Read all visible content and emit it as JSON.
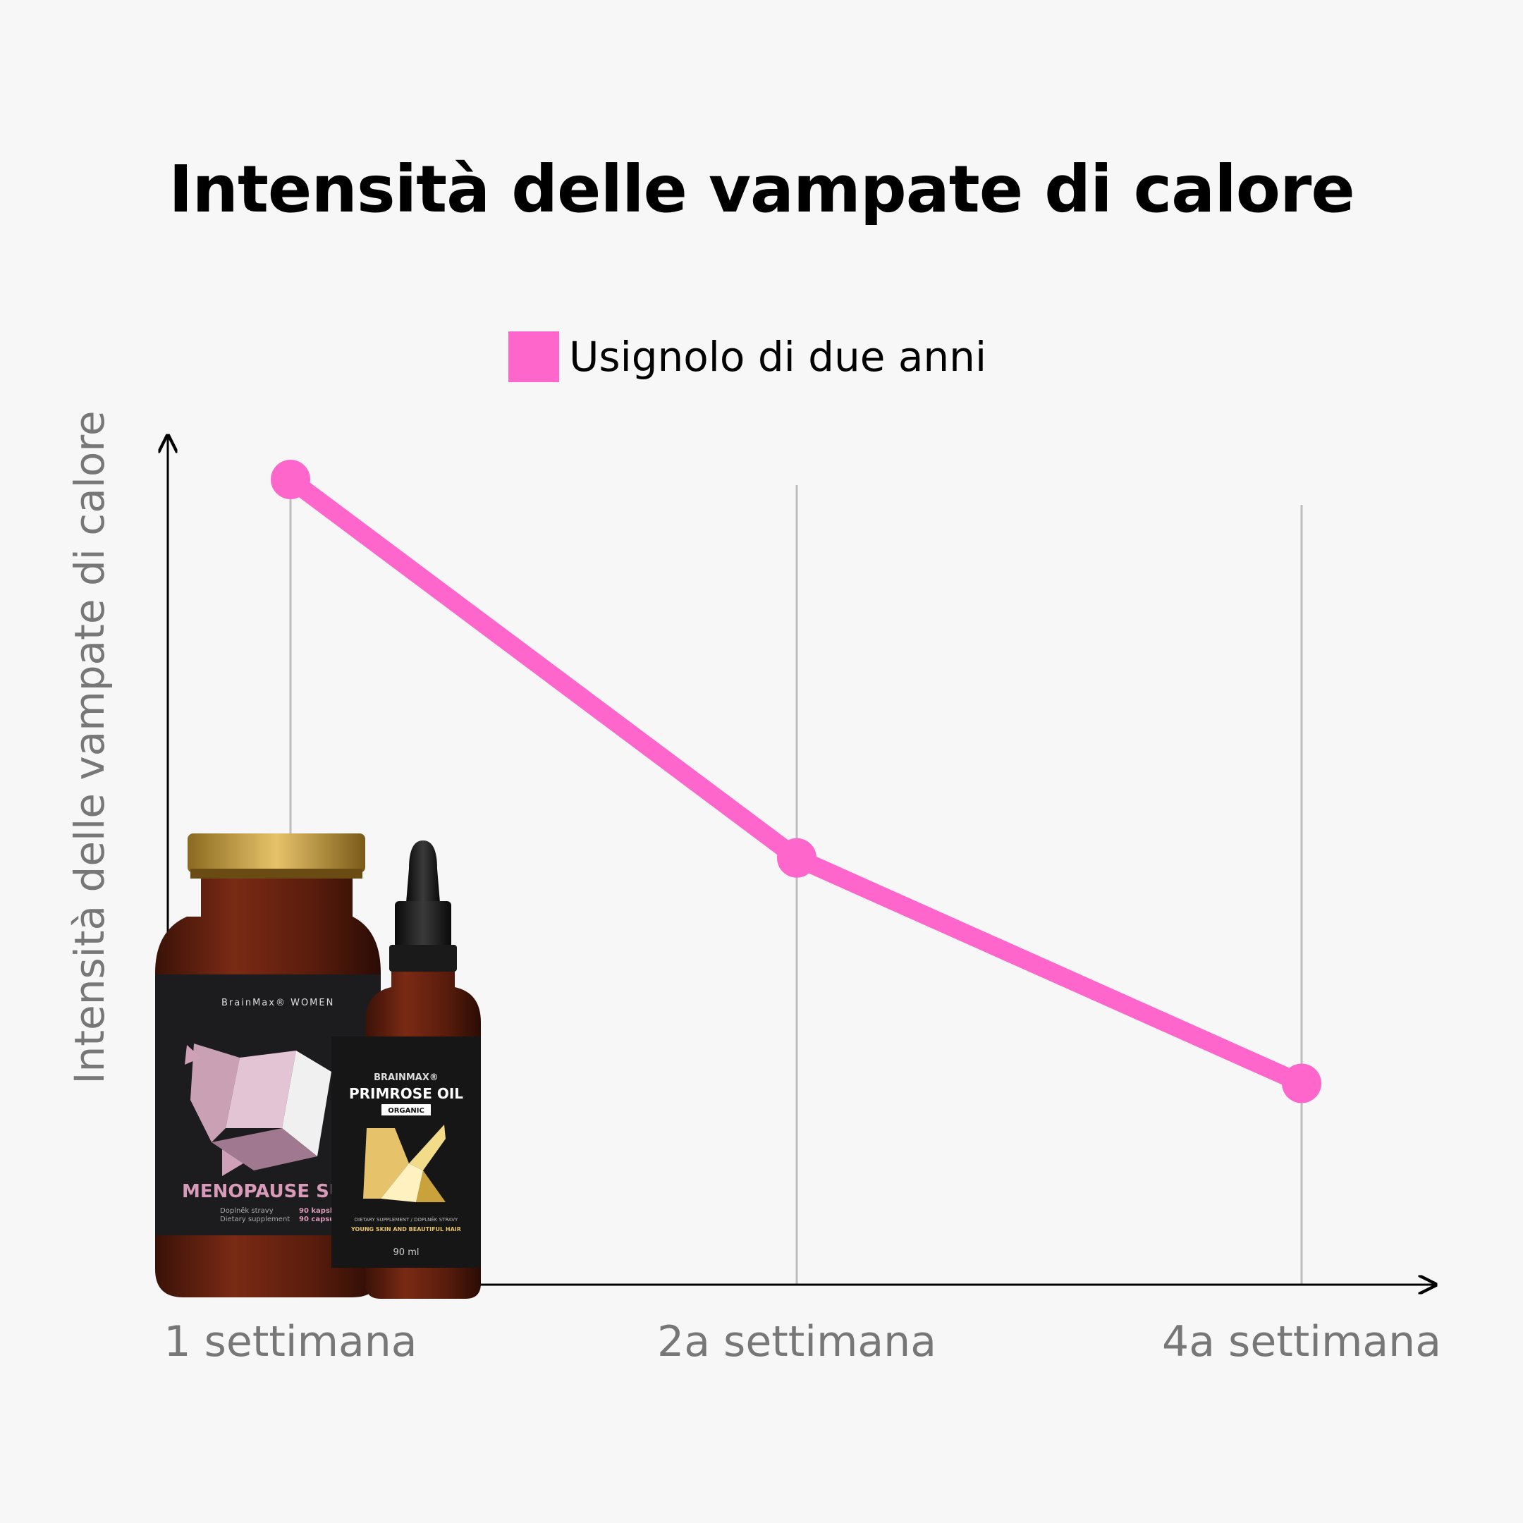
{
  "title": "Intensità delle vampate di calore",
  "legend": {
    "label": "Usignolo di due anni"
  },
  "ylabel": "Intensità delle vampate di calore",
  "colors": {
    "series": "#ff66cc",
    "axis": "#000000",
    "grid": "#bdbdbd",
    "tick_text": "#777777"
  },
  "chart_data": {
    "type": "line",
    "title": "Intensità delle vampate di calore",
    "xlabel": "",
    "ylabel": "Intensità delle vampate di calore",
    "categories": [
      "1 settimana",
      "2a settimana",
      "4a settimana"
    ],
    "series": [
      {
        "name": "Usignolo di due anni",
        "values": [
          100,
          53,
          25
        ]
      }
    ],
    "ylim": [
      0,
      100
    ],
    "grid": "vertical",
    "legend": "top-center"
  },
  "products": {
    "jar": {
      "brand": "BrainMax® WOMEN",
      "name": "MENOPAUSE SUP",
      "sub1": "Doplněk stravy",
      "sub2": "Dietary supplement",
      "count1": "90 kapsl",
      "count2": "90 capsu"
    },
    "bottle": {
      "brand": "BRAINMAX®",
      "name": "PRIMROSE OIL",
      "badge": "ORGANIC",
      "sub": "DIETARY SUPPLEMENT / DOPLNĚK STRAVY",
      "claim": "YOUNG SKIN AND BEAUTIFUL HAIR",
      "volume": "90 ml"
    }
  }
}
